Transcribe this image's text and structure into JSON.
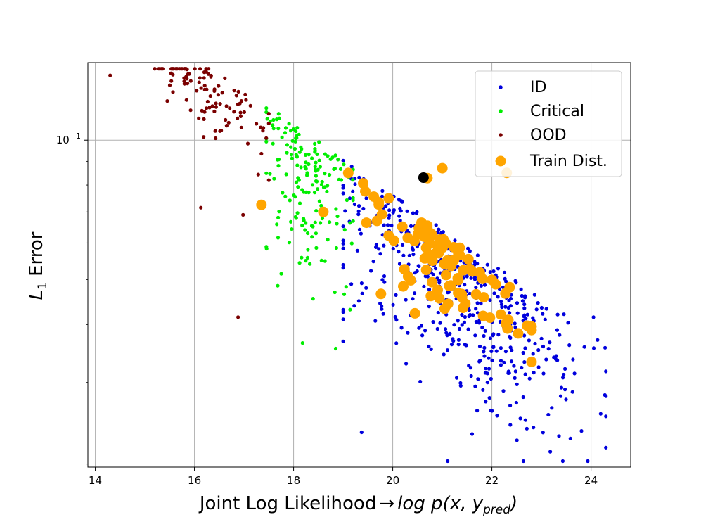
{
  "chart_data": {
    "type": "scatter",
    "title": "",
    "xlabel_main": "Joint Log Likelihood",
    "xlabel_arrow": "→",
    "xlabel_math": "log p(x, y",
    "xlabel_sub": "pred",
    "xlabel_close": ")",
    "ylabel_main": "L",
    "ylabel_sub": "1",
    "ylabel_rest": " Error",
    "xlim": [
      13.85,
      24.8
    ],
    "ylim": [
      0.0197,
      0.147
    ],
    "yscale": "log",
    "grid": true,
    "legend_position": "top-right",
    "x_ticks": [
      {
        "value": 14,
        "label": "14"
      },
      {
        "value": 16,
        "label": "16"
      },
      {
        "value": 18,
        "label": "18"
      },
      {
        "value": 20,
        "label": "20"
      },
      {
        "value": 22,
        "label": "22"
      },
      {
        "value": 24,
        "label": "24"
      }
    ],
    "y_ticks": [
      {
        "value": 0.1,
        "base": "10",
        "exp": "−1"
      }
    ],
    "colors": {
      "id": "#0000dd",
      "critical": "#00ee00",
      "ood": "#7a0000",
      "train": "#ffa500",
      "center": "#000000"
    },
    "series": [
      {
        "name": "ID",
        "key": "id",
        "count": 520,
        "x_center": 21.3,
        "x_spread": 1.25,
        "color": "#0000dd"
      },
      {
        "name": "Critical",
        "key": "critical",
        "count": 170,
        "x_center": 18.3,
        "x_spread": 0.45,
        "color": "#00ee00"
      },
      {
        "name": "OOD",
        "key": "ood",
        "count": 110,
        "x_center": 16.3,
        "x_spread": 0.65,
        "color": "#7a0000"
      },
      {
        "name": "Train Dist.",
        "key": "train",
        "count": 100,
        "x_center": 20.9,
        "x_spread": 0.85,
        "color": "#ffa500"
      }
    ],
    "center_point": {
      "x": 20.62,
      "y": 0.083
    },
    "sample_points": {
      "ood": [
        [
          14.3,
          0.138
        ],
        [
          16.13,
          0.0715
        ],
        [
          16.88,
          0.0415
        ],
        [
          16.98,
          0.069
        ],
        [
          17.35,
          0.0935
        ]
      ],
      "critical": [
        [
          18.18,
          0.0365
        ],
        [
          18.85,
          0.0355
        ],
        [
          19.02,
          0.0465
        ],
        [
          17.68,
          0.0485
        ],
        [
          17.75,
          0.0515
        ]
      ],
      "train": [
        [
          17.35,
          0.0725
        ],
        [
          18.6,
          0.07
        ],
        [
          20.7,
          0.0828
        ],
        [
          21.0,
          0.087
        ],
        [
          22.3,
          0.085
        ]
      ],
      "id": [
        [
          21.72,
          0.0305
        ],
        [
          22.4,
          0.0352
        ],
        [
          24.3,
          0.0317
        ],
        [
          24.05,
          0.0415
        ],
        [
          23.0,
          0.0373
        ]
      ]
    },
    "legend": [
      {
        "label": "ID",
        "key": "id"
      },
      {
        "label": "Critical",
        "key": "critical"
      },
      {
        "label": "OOD",
        "key": "ood"
      },
      {
        "label": "Train Dist.",
        "key": "train"
      }
    ]
  }
}
